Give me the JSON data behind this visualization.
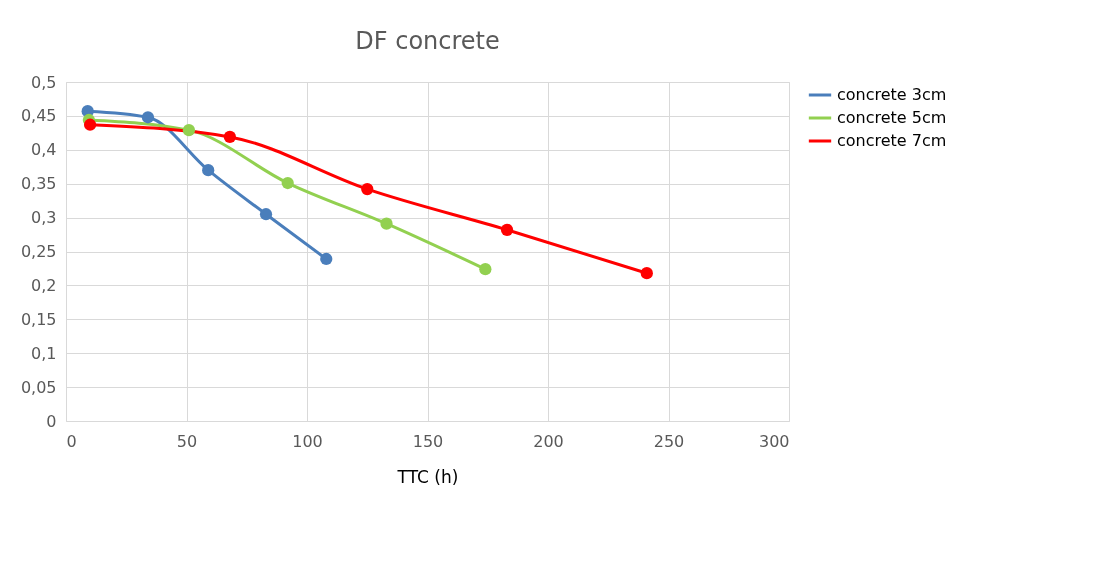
{
  "chart_data": {
    "type": "line",
    "title": "DF concrete",
    "xlabel": "TTC (h)",
    "xlim": [
      0,
      300
    ],
    "xticks": [
      0,
      50,
      100,
      150,
      200,
      250,
      300
    ],
    "ylim": [
      0,
      0.5
    ],
    "yticks": [
      {
        "value": 0,
        "label": "0"
      },
      {
        "value": 0.05,
        "label": "0,05"
      },
      {
        "value": 0.1,
        "label": "0,1"
      },
      {
        "value": 0.15,
        "label": "0,15"
      },
      {
        "value": 0.2,
        "label": "0,2"
      },
      {
        "value": 0.25,
        "label": "0,25"
      },
      {
        "value": 0.3,
        "label": "0,3"
      },
      {
        "value": 0.35,
        "label": "0,35"
      },
      {
        "value": 0.4,
        "label": "0,4"
      },
      {
        "value": 0.45,
        "label": "0,45"
      },
      {
        "value": 0.5,
        "label": "0,5"
      }
    ],
    "grid": true,
    "legend": "right",
    "marker": "circle",
    "line_style": "solid",
    "series": [
      {
        "name": "concrete 3cm",
        "color": "#4a7ebb",
        "x": [
          9,
          34,
          59,
          83,
          108
        ],
        "values": [
          0.457,
          0.448,
          0.37,
          0.305,
          0.239
        ]
      },
      {
        "name": "concrete 5cm",
        "color": "#92d050",
        "x": [
          9.5,
          51,
          92,
          133,
          174
        ],
        "values": [
          0.444,
          0.429,
          0.351,
          0.291,
          0.224
        ]
      },
      {
        "name": "concrete 7cm",
        "color": "#ff0000",
        "x": [
          10,
          68,
          125,
          183,
          241
        ],
        "values": [
          0.437,
          0.419,
          0.342,
          0.282,
          0.218
        ]
      }
    ]
  }
}
